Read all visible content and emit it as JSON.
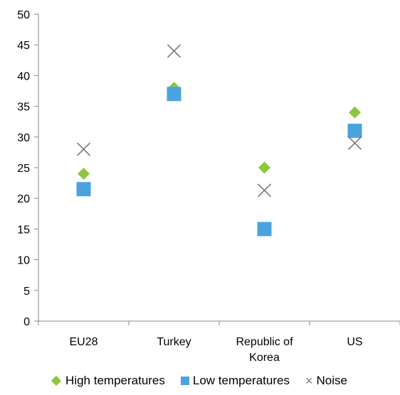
{
  "chart_data": {
    "type": "scatter",
    "categories": [
      "EU28",
      "Turkey",
      "Republic of Korea",
      "US"
    ],
    "category_lines": [
      [
        "EU28"
      ],
      [
        "Turkey"
      ],
      [
        "Republic of",
        "Korea"
      ],
      [
        "US"
      ]
    ],
    "series": [
      {
        "name": "High temperatures",
        "marker": "diamond",
        "color": "#8dc63f",
        "values": [
          24,
          38,
          25,
          34
        ]
      },
      {
        "name": "Low temperatures",
        "marker": "square",
        "color": "#4aa3df",
        "values": [
          21.5,
          37,
          15,
          31
        ]
      },
      {
        "name": "Noise",
        "marker": "x",
        "color": "#777777",
        "values": [
          28,
          44,
          21.3,
          29
        ]
      }
    ],
    "ylim": [
      0,
      50
    ],
    "yticks": [
      0,
      5,
      10,
      15,
      20,
      25,
      30,
      35,
      40,
      45,
      50
    ],
    "grid": false,
    "legend_position": "bottom"
  },
  "legend": {
    "high": "High temperatures",
    "low": "Low temperatures",
    "noise": "Noise"
  }
}
